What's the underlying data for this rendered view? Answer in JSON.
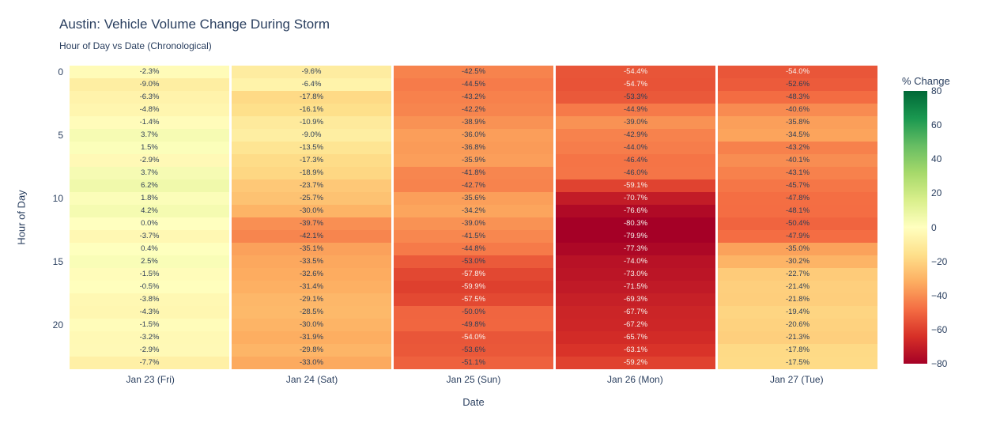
{
  "header": {
    "title": "Austin: Vehicle Volume Change During Storm",
    "subtitle": "Hour of Day vs Date (Chronological)"
  },
  "chart_data": {
    "type": "heatmap",
    "title": "Austin: Vehicle Volume Change During Storm",
    "subtitle": "Hour of Day vs Date (Chronological)",
    "xlabel": "Date",
    "ylabel": "Hour of Day",
    "x_categories": [
      "Jan 23 (Fri)",
      "Jan 24 (Sat)",
      "Jan 25 (Sun)",
      "Jan 26 (Mon)",
      "Jan 27 (Tue)"
    ],
    "y_categories": [
      0,
      1,
      2,
      3,
      4,
      5,
      6,
      7,
      8,
      9,
      10,
      11,
      12,
      13,
      14,
      15,
      16,
      17,
      18,
      19,
      20,
      21,
      22,
      23
    ],
    "y_tick_values": [
      0,
      5,
      10,
      15,
      20
    ],
    "values": [
      [
        -2.3,
        -9.6,
        -42.5,
        -54.4,
        -54.0
      ],
      [
        -9.0,
        -6.4,
        -44.5,
        -54.7,
        -52.6
      ],
      [
        -6.3,
        -17.8,
        -43.2,
        -53.3,
        -48.3
      ],
      [
        -4.8,
        -16.1,
        -42.2,
        -44.9,
        -40.6
      ],
      [
        -1.4,
        -10.9,
        -38.9,
        -39.0,
        -35.8
      ],
      [
        3.7,
        -9.0,
        -36.0,
        -42.9,
        -34.5
      ],
      [
        1.5,
        -13.5,
        -36.8,
        -44.0,
        -43.2
      ],
      [
        -2.9,
        -17.3,
        -35.9,
        -46.4,
        -40.1
      ],
      [
        3.7,
        -18.9,
        -41.8,
        -46.0,
        -43.1
      ],
      [
        6.2,
        -23.7,
        -42.7,
        -59.1,
        -45.7
      ],
      [
        1.8,
        -25.7,
        -35.6,
        -70.7,
        -47.8
      ],
      [
        4.2,
        -30.0,
        -34.2,
        -76.6,
        -48.1
      ],
      [
        0.0,
        -39.7,
        -39.0,
        -80.3,
        -50.4
      ],
      [
        -3.7,
        -42.1,
        -41.5,
        -79.9,
        -47.9
      ],
      [
        0.4,
        -35.1,
        -44.8,
        -77.3,
        -35.0
      ],
      [
        2.5,
        -33.5,
        -53.0,
        -74.0,
        -30.2
      ],
      [
        -1.5,
        -32.6,
        -57.8,
        -73.0,
        -22.7
      ],
      [
        -0.5,
        -31.4,
        -59.9,
        -71.5,
        -21.4
      ],
      [
        -3.8,
        -29.1,
        -57.5,
        -69.3,
        -21.8
      ],
      [
        -4.3,
        -28.5,
        -50.0,
        -67.7,
        -19.4
      ],
      [
        -1.5,
        -30.0,
        -49.8,
        -67.2,
        -20.6
      ],
      [
        -3.2,
        -31.9,
        -54.0,
        -65.7,
        -21.3
      ],
      [
        -2.9,
        -29.8,
        -53.6,
        -63.1,
        -17.8
      ],
      [
        -7.7,
        -33.0,
        -51.1,
        -59.2,
        -17.5
      ]
    ],
    "value_suffix": "%",
    "zmin": -80,
    "zmax": 80,
    "colorscale_name": "RdYlGn",
    "colorscale_rgb": [
      [
        165,
        0,
        38
      ],
      [
        215,
        48,
        39
      ],
      [
        244,
        109,
        67
      ],
      [
        253,
        174,
        97
      ],
      [
        254,
        224,
        139
      ],
      [
        255,
        255,
        191
      ],
      [
        217,
        239,
        139
      ],
      [
        166,
        217,
        106
      ],
      [
        102,
        189,
        99
      ],
      [
        26,
        152,
        80
      ],
      [
        0,
        104,
        55
      ]
    ],
    "colorbar": {
      "title": "% Change",
      "tick_values": [
        80,
        60,
        40,
        20,
        0,
        -20,
        -40,
        -60,
        -80
      ],
      "tick_labels": [
        "80",
        "60",
        "40",
        "20",
        "0",
        "−20",
        "−40",
        "−60",
        "−80"
      ]
    },
    "layout_hints": {
      "legend_position": "right-colorbar",
      "grid": false,
      "text_in_cells": true
    },
    "text_colors": {
      "dark_text": "#2e3e56",
      "light_text": "#f7f3ee"
    }
  }
}
